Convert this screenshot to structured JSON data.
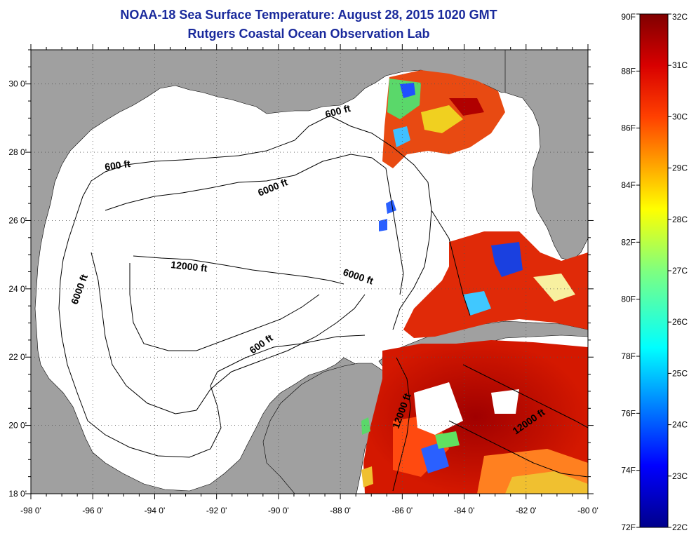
{
  "header": {
    "title": "NOAA-18 Sea Surface Temperature:  August 28, 2015 1020 GMT",
    "subtitle": "Rutgers Coastal Ocean Observation Lab"
  },
  "map": {
    "lon_range": [
      -98,
      -80
    ],
    "lat_range": [
      18,
      31
    ],
    "x_tick_labels": [
      "-98 0'",
      "-96 0'",
      "-94 0'",
      "-92 0'",
      "-90 0'",
      "-88 0'",
      "-86 0'",
      "-84 0'",
      "-82 0'",
      "-80 0'"
    ],
    "y_tick_labels": [
      "18 0'",
      "20 0'",
      "22 0'",
      "24 0'",
      "26 0'",
      "28 0'",
      "30 0'"
    ],
    "land_color": "#a0a0a0",
    "contour_labels": [
      "600 ft",
      "600 ft",
      "6000 ft",
      "6000 ft",
      "6000 ft",
      "12000 ft",
      "600 ft",
      "12000 ft",
      "12000 ft"
    ]
  },
  "colorbar": {
    "fahrenheit_labels": [
      "90F",
      "88F",
      "86F",
      "84F",
      "82F",
      "80F",
      "78F",
      "76F",
      "74F",
      "72F"
    ],
    "celsius_labels": [
      "32C",
      "31C",
      "30C",
      "29C",
      "28C",
      "27C",
      "26C",
      "25C",
      "24C",
      "23C",
      "22C"
    ],
    "colors": [
      "#800000",
      "#ff0000",
      "#ffff00",
      "#00ffff",
      "#0000ff",
      "#00008b"
    ]
  }
}
